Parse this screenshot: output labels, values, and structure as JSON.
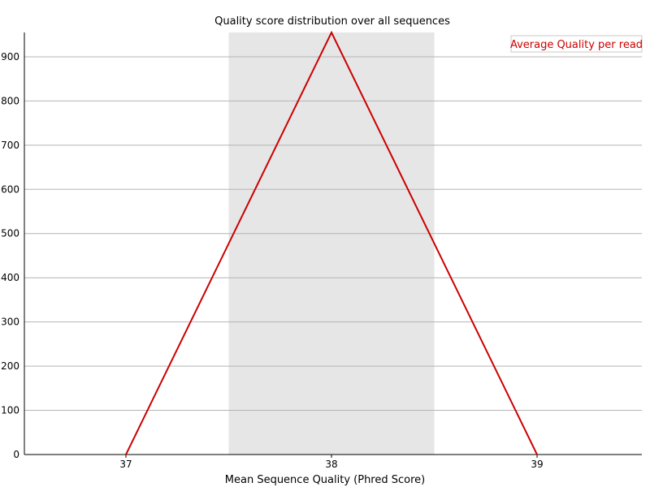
{
  "chart_data": {
    "type": "line",
    "title": "Quality score distribution over all sequences",
    "xlabel": "Mean Sequence Quality (Phred Score)",
    "ylabel": "",
    "categories": [
      "37",
      "38",
      "39"
    ],
    "x": [
      37,
      38,
      39
    ],
    "ylim": [
      0,
      955
    ],
    "yticks": [
      0,
      100,
      200,
      300,
      400,
      500,
      600,
      700,
      800,
      900
    ],
    "grid": true,
    "legend_position": "top-right",
    "series": [
      {
        "name": "Average Quality per read",
        "values": [
          0,
          955,
          0
        ],
        "color": "#cc0000"
      }
    ],
    "highlight_band": {
      "from": 37.5,
      "to": 38.5,
      "color": "#e6e6e6"
    }
  }
}
